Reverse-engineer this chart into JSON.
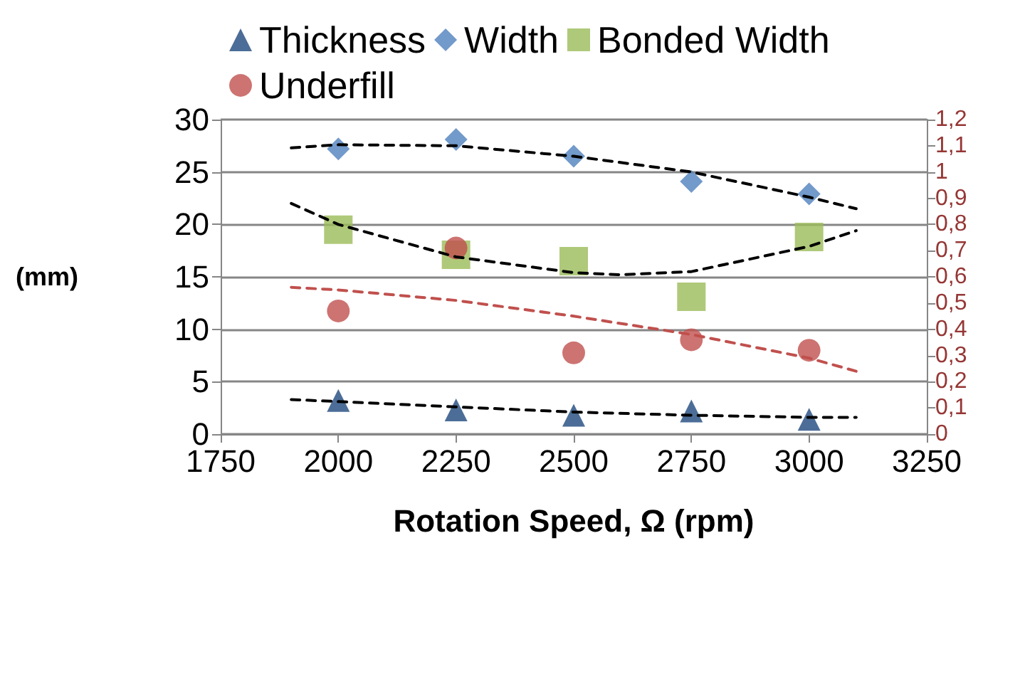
{
  "chart_data": {
    "type": "scatter",
    "xlabel": "Rotation Speed, Ω (rpm)",
    "ylabel": "(mm)",
    "legend": "top",
    "grid": "y",
    "xlim": [
      1750,
      3250
    ],
    "xticks": [
      1750,
      2000,
      2250,
      2500,
      2750,
      3000,
      3250
    ],
    "ylim": [
      0,
      30
    ],
    "yticks": [
      0,
      5,
      10,
      15,
      20,
      25,
      30
    ],
    "y2lim": [
      0,
      1.2
    ],
    "y2ticks": [
      0,
      {
        "value": 0.1,
        "label": "0,1"
      },
      {
        "value": 0.2,
        "label": "0,2"
      },
      {
        "value": 0.3,
        "label": "0,3"
      },
      {
        "value": 0.4,
        "label": "0,4"
      },
      {
        "value": 0.5,
        "label": "0,5"
      },
      {
        "value": 0.6,
        "label": "0,6"
      },
      {
        "value": 0.7,
        "label": "0,7"
      },
      {
        "value": 0.8,
        "label": "0,8"
      },
      {
        "value": 0.9,
        "label": "0,9"
      },
      1,
      {
        "value": 1.1,
        "label": "1,1"
      },
      {
        "value": 1.2,
        "label": "1,2"
      }
    ],
    "series": [
      {
        "name": "Thickness",
        "marker": "triangle",
        "color": "#1f497d",
        "x": [
          2000,
          2250,
          2500,
          2750,
          3000
        ],
        "values": [
          3.2,
          2.3,
          1.8,
          2.2,
          1.4
        ]
      },
      {
        "name": "Width",
        "marker": "diamond",
        "color": "#4f81bd",
        "x": [
          2000,
          2250,
          2500,
          2750,
          3000
        ],
        "values": [
          27.2,
          28.1,
          26.5,
          24.1,
          22.9
        ]
      },
      {
        "name": "Bonded Width",
        "marker": "square",
        "color": "#9bbb59",
        "x": [
          2000,
          2250,
          2500,
          2750,
          3000
        ],
        "values": [
          19.5,
          17.1,
          16.5,
          13.1,
          18.8
        ]
      },
      {
        "name": "Underfill",
        "marker": "circle",
        "color": "#c0504d",
        "axis": "y2",
        "x": [
          2000,
          2250,
          2500,
          2750,
          3000
        ],
        "values": [
          0.47,
          0.71,
          0.31,
          0.36,
          0.32
        ]
      },
      {
        "type": "line",
        "marker": "none",
        "line_style": "dashed",
        "color": "#000000",
        "x": [
          1900,
          2000,
          2250,
          2500,
          2750,
          3000,
          3100
        ],
        "values": [
          3.3,
          3.1,
          2.6,
          2.1,
          1.8,
          1.6,
          1.6
        ]
      },
      {
        "type": "line",
        "marker": "none",
        "line_style": "dashed",
        "color": "#000000",
        "x": [
          1900,
          2000,
          2250,
          2500,
          2750,
          3000,
          3100
        ],
        "values": [
          27.3,
          27.6,
          27.5,
          26.5,
          25.0,
          22.6,
          21.5
        ]
      },
      {
        "type": "line",
        "marker": "none",
        "line_style": "dashed",
        "color": "#000000",
        "x": [
          1900,
          2000,
          2250,
          2500,
          2600,
          2750,
          3000,
          3100
        ],
        "values": [
          22.0,
          20.0,
          16.9,
          15.4,
          15.2,
          15.5,
          17.9,
          19.4
        ]
      },
      {
        "type": "line",
        "marker": "none",
        "line_style": "dashed",
        "color": "#c0504d",
        "axis": "y2",
        "x": [
          1900,
          2000,
          2250,
          2500,
          2750,
          3000,
          3100
        ],
        "values": [
          0.56,
          0.55,
          0.51,
          0.45,
          0.38,
          0.29,
          0.24
        ]
      }
    ]
  }
}
